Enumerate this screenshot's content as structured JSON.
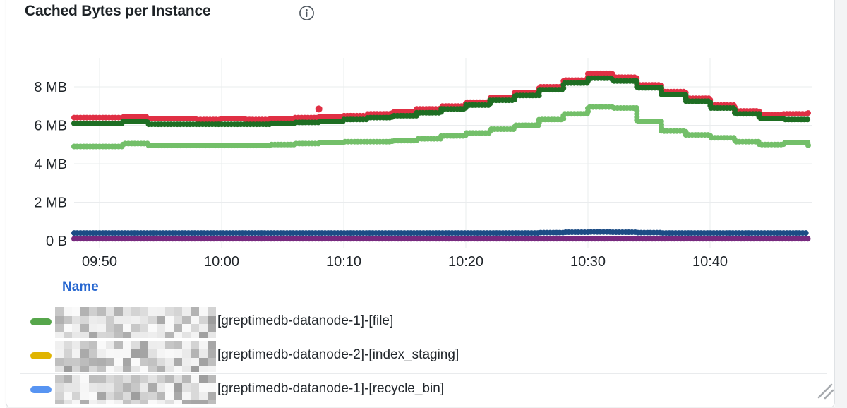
{
  "panel": {
    "title": "Cached Bytes per Instance",
    "info_icon": "info-circle-icon"
  },
  "chart_data": {
    "type": "line",
    "style": "dotted-points-step",
    "title": "Cached Bytes per Instance",
    "unit": "bytes",
    "grid": true,
    "legend_position": "bottom-table",
    "x_axis": {
      "ticks": [
        "09:50",
        "10:00",
        "10:10",
        "10:20",
        "10:30",
        "10:40"
      ],
      "visible_range": [
        "09:48",
        "10:48"
      ]
    },
    "y_axis": {
      "ticks": [
        "8 MB",
        "6 MB",
        "4 MB",
        "2 MB",
        "0 B"
      ],
      "tick_values_mb": [
        8,
        6,
        4,
        2,
        0
      ],
      "range_mb": [
        0,
        9.6
      ]
    },
    "start_time": "09:48",
    "sample_interval_minutes": 2,
    "series": [
      {
        "name": "series-red",
        "color": "#E02F44",
        "values_mb": [
          6.4,
          6.4,
          6.45,
          6.35,
          6.35,
          6.3,
          6.35,
          6.3,
          6.35,
          6.4,
          6.45,
          6.5,
          6.6,
          6.7,
          6.85,
          7.0,
          7.2,
          7.45,
          7.7,
          8.0,
          8.35,
          8.7,
          8.5,
          8.1,
          7.75,
          7.4,
          7.05,
          6.75,
          6.55,
          6.6,
          6.7
        ]
      },
      {
        "name": "series-dark-green",
        "color": "#1E6E23",
        "values_mb": [
          6.1,
          6.1,
          6.2,
          6.05,
          6.05,
          6.05,
          6.05,
          6.05,
          6.1,
          6.15,
          6.2,
          6.3,
          6.4,
          6.5,
          6.65,
          6.85,
          7.05,
          7.3,
          7.55,
          7.85,
          8.2,
          8.45,
          8.3,
          7.95,
          7.6,
          7.25,
          6.9,
          6.6,
          6.35,
          6.3,
          6.3
        ]
      },
      {
        "name": "series-light-green",
        "color": "#73BF69",
        "values_mb": [
          4.9,
          4.9,
          5.05,
          4.95,
          4.95,
          4.95,
          4.95,
          4.95,
          5.0,
          5.05,
          5.1,
          5.15,
          5.15,
          5.2,
          5.3,
          5.45,
          5.6,
          5.8,
          6.0,
          6.3,
          6.6,
          6.95,
          6.9,
          6.2,
          5.7,
          5.5,
          5.35,
          5.15,
          5.0,
          5.1,
          4.9
        ]
      },
      {
        "name": "series-dark-blue",
        "color": "#1C4C85",
        "values_mb": [
          0.4,
          0.4,
          0.4,
          0.4,
          0.4,
          0.4,
          0.4,
          0.4,
          0.4,
          0.4,
          0.4,
          0.4,
          0.4,
          0.4,
          0.4,
          0.4,
          0.4,
          0.4,
          0.4,
          0.42,
          0.44,
          0.45,
          0.44,
          0.42,
          0.4,
          0.4,
          0.4,
          0.4,
          0.4,
          0.4,
          0.4
        ]
      },
      {
        "name": "series-purple",
        "color": "#77297E",
        "values_mb": [
          0.1,
          0.1,
          0.1,
          0.1,
          0.1,
          0.1,
          0.1,
          0.1,
          0.1,
          0.1,
          0.1,
          0.1,
          0.1,
          0.1,
          0.1,
          0.1,
          0.1,
          0.1,
          0.1,
          0.1,
          0.1,
          0.1,
          0.1,
          0.1,
          0.1,
          0.1,
          0.1,
          0.1,
          0.1,
          0.1,
          0.1
        ]
      }
    ],
    "outlier": {
      "series": "series-red",
      "minute_offset": 20,
      "value_mb": 6.85
    }
  },
  "legend": {
    "header": "Name",
    "rows": [
      {
        "marker_color": "#56A64B",
        "redacted_prefix": true,
        "label": "[greptimedb-datanode-1]-[file]"
      },
      {
        "marker_color": "#E0B400",
        "redacted_prefix": true,
        "label": "[greptimedb-datanode-2]-[index_staging]"
      },
      {
        "marker_color": "#5794F2",
        "redacted_prefix": true,
        "label": "[greptimedb-datanode-1]-[recycle_bin]"
      }
    ]
  }
}
